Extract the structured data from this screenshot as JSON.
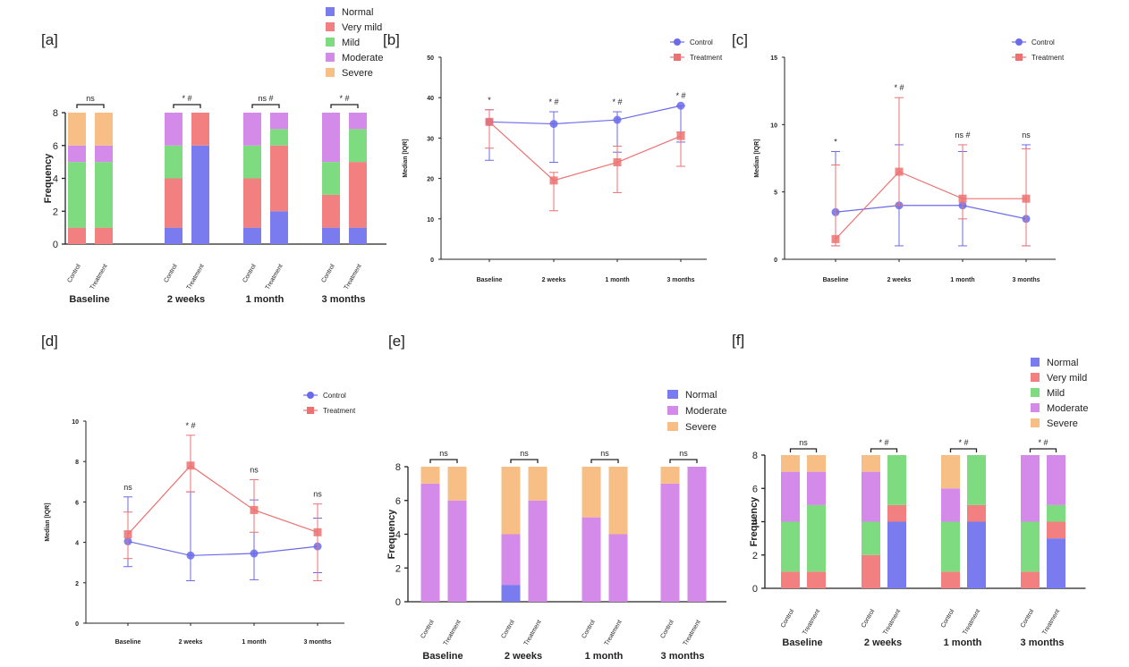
{
  "colors": {
    "Normal": "#7b7bf0",
    "Very mild": "#f28080",
    "Mild": "#7fdb7f",
    "Moderate": "#d48ae8",
    "Severe": "#f7bf85",
    "Control": "#6b6bea",
    "Treatment": "#ec7272"
  },
  "chart_data": [
    {
      "panel": "[a]",
      "type": "bar",
      "stacked": true,
      "ylabel": "Frequency",
      "ylim": [
        0,
        8
      ],
      "yticks": [
        "0",
        "2",
        "4",
        "6",
        "8"
      ],
      "groups": [
        "Baseline",
        "2 weeks",
        "1 month",
        "3 months"
      ],
      "subgroups": [
        "Control",
        "Treatment"
      ],
      "categories": [
        "Normal",
        "Very mild",
        "Mild",
        "Moderate",
        "Severe"
      ],
      "legend": [
        "Normal",
        "Very mild",
        "Mild",
        "Moderate",
        "Severe"
      ],
      "significance": [
        "ns",
        "* #",
        "ns #",
        "* #"
      ],
      "bars": [
        [
          [
            0,
            1,
            4,
            1,
            2
          ],
          [
            0,
            1,
            4,
            1,
            2
          ]
        ],
        [
          [
            1,
            3,
            2,
            2,
            0
          ],
          [
            6,
            2,
            0,
            0,
            0
          ]
        ],
        [
          [
            1,
            3,
            2,
            2,
            0
          ],
          [
            2,
            4,
            1,
            1,
            0
          ]
        ],
        [
          [
            1,
            2,
            2,
            3,
            0
          ],
          [
            1,
            4,
            2,
            1,
            0
          ]
        ]
      ]
    },
    {
      "panel": "[b]",
      "type": "line",
      "ylabel": "Median [IQR]",
      "ylim": [
        0,
        50
      ],
      "yticks": [
        "0",
        "10",
        "20",
        "30",
        "40",
        "50"
      ],
      "x": [
        "Baseline",
        "2 weeks",
        "1 month",
        "3 months"
      ],
      "significance": [
        "*",
        "* #",
        "* #",
        "* #"
      ],
      "series": [
        {
          "name": "Control",
          "values": [
            34,
            33.5,
            34.5,
            38
          ],
          "lower": [
            24.5,
            24,
            26.5,
            29
          ],
          "upper": [
            37,
            36.5,
            36.5,
            38
          ]
        },
        {
          "name": "Treatment",
          "values": [
            34,
            19.5,
            24,
            30.5
          ],
          "lower": [
            27.5,
            12,
            16.5,
            23
          ],
          "upper": [
            37,
            21.5,
            28,
            31.5
          ]
        }
      ]
    },
    {
      "panel": "[c]",
      "type": "line",
      "ylabel": "Median [IQR]",
      "ylim": [
        0,
        15
      ],
      "yticks": [
        "0",
        "5",
        "10",
        "15"
      ],
      "x": [
        "Baseline",
        "2 weeks",
        "1 month",
        "3 months"
      ],
      "significance": [
        "*",
        "* #",
        "ns #",
        "ns"
      ],
      "series": [
        {
          "name": "Control",
          "values": [
            3.5,
            4,
            4,
            3
          ],
          "lower": [
            1,
            1,
            1,
            1
          ],
          "upper": [
            8,
            8.5,
            8,
            8.5
          ]
        },
        {
          "name": "Treatment",
          "values": [
            1.5,
            6.5,
            4.5,
            4.5
          ],
          "lower": [
            1,
            4,
            3,
            1
          ],
          "upper": [
            7,
            12,
            8.5,
            8.2
          ]
        }
      ]
    },
    {
      "panel": "[d]",
      "type": "line",
      "ylabel": "Median [IQR]",
      "ylim": [
        0,
        10
      ],
      "yticks": [
        "0",
        "2",
        "4",
        "6",
        "8",
        "10"
      ],
      "x": [
        "Baseline",
        "2 weeks",
        "1 month",
        "3 months"
      ],
      "significance": [
        "ns",
        "* #",
        "ns",
        "ns"
      ],
      "series": [
        {
          "name": "Control",
          "values": [
            4.05,
            3.35,
            3.45,
            3.8
          ],
          "lower": [
            2.8,
            2.1,
            2.15,
            2.5
          ],
          "upper": [
            6.25,
            6.5,
            6.1,
            5.2
          ]
        },
        {
          "name": "Treatment",
          "values": [
            4.4,
            7.8,
            5.6,
            4.5
          ],
          "lower": [
            3.2,
            6.5,
            4.5,
            2.1
          ],
          "upper": [
            5.5,
            9.3,
            7.1,
            5.9
          ]
        }
      ]
    },
    {
      "panel": "[e]",
      "type": "bar",
      "stacked": true,
      "ylabel": "Frequency",
      "ylim": [
        0,
        8
      ],
      "yticks": [
        "0",
        "2",
        "4",
        "6",
        "8"
      ],
      "groups": [
        "Baseline",
        "2 weeks",
        "1 month",
        "3 months"
      ],
      "subgroups": [
        "Control",
        "Treatment"
      ],
      "categories": [
        "Normal",
        "Moderate",
        "Severe"
      ],
      "legend": [
        "Normal",
        "Moderate",
        "Severe"
      ],
      "significance": [
        "ns",
        "ns",
        "ns",
        "ns"
      ],
      "bars": [
        [
          [
            0,
            7,
            1
          ],
          [
            0,
            6,
            2
          ]
        ],
        [
          [
            1,
            3,
            4
          ],
          [
            0,
            6,
            2
          ]
        ],
        [
          [
            0,
            5,
            3
          ],
          [
            0,
            4,
            4
          ]
        ],
        [
          [
            0,
            7,
            1
          ],
          [
            0,
            8,
            0
          ]
        ]
      ]
    },
    {
      "panel": "[f]",
      "type": "bar",
      "stacked": true,
      "ylabel": "Frequency",
      "ylim": [
        0,
        8
      ],
      "yticks": [
        "0",
        "2",
        "4",
        "6",
        "8"
      ],
      "groups": [
        "Baseline",
        "2 weeks",
        "1 month",
        "3 months"
      ],
      "subgroups": [
        "Control",
        "Treatment"
      ],
      "categories": [
        "Normal",
        "Very mild",
        "Mild",
        "Moderate",
        "Severe"
      ],
      "legend": [
        "Normal",
        "Very mild",
        "Mild",
        "Moderate",
        "Severe"
      ],
      "significance": [
        "ns",
        "* #",
        "* #",
        "* #"
      ],
      "bars": [
        [
          [
            0,
            1,
            3,
            3,
            1
          ],
          [
            0,
            1,
            4,
            2,
            1
          ]
        ],
        [
          [
            0,
            2,
            2,
            3,
            1
          ],
          [
            4,
            1,
            3,
            0,
            0
          ]
        ],
        [
          [
            0,
            1,
            3,
            2,
            2
          ],
          [
            4,
            1,
            3,
            0,
            0
          ]
        ],
        [
          [
            0,
            1,
            3,
            4,
            0
          ],
          [
            3,
            1,
            1,
            3,
            0
          ]
        ]
      ]
    }
  ]
}
